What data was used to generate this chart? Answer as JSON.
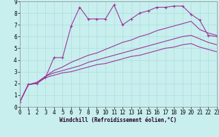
{
  "xlabel": "Windchill (Refroidissement éolien,°C)",
  "background_color": "#c8eeee",
  "line_color": "#993399",
  "grid_color": "#aadddd",
  "xlim": [
    0,
    23
  ],
  "ylim": [
    0,
    9
  ],
  "xticks": [
    0,
    1,
    2,
    3,
    4,
    5,
    6,
    7,
    8,
    9,
    10,
    11,
    12,
    13,
    14,
    15,
    16,
    17,
    18,
    19,
    20,
    21,
    22,
    23
  ],
  "yticks": [
    0,
    1,
    2,
    3,
    4,
    5,
    6,
    7,
    8,
    9
  ],
  "curve1_x": [
    0,
    1,
    2,
    3,
    4,
    5,
    6,
    7,
    8,
    9,
    10,
    11,
    12,
    13,
    14,
    15,
    16,
    17,
    18,
    19,
    20,
    21,
    22,
    23
  ],
  "curve1_y": [
    0.4,
    1.9,
    2.0,
    2.5,
    4.2,
    4.2,
    6.9,
    8.5,
    7.5,
    7.5,
    7.5,
    8.7,
    7.0,
    7.5,
    8.0,
    8.2,
    8.5,
    8.5,
    8.6,
    8.6,
    7.9,
    7.4,
    6.1,
    6.0
  ],
  "curve2_x": [
    0,
    1,
    2,
    3,
    4,
    5,
    6,
    7,
    8,
    9,
    10,
    11,
    12,
    13,
    14,
    15,
    16,
    17,
    18,
    19,
    20,
    21,
    22,
    23
  ],
  "curve2_y": [
    0.4,
    1.9,
    2.1,
    2.6,
    3.1,
    3.4,
    3.8,
    4.1,
    4.4,
    4.6,
    4.9,
    5.2,
    5.5,
    5.7,
    6.0,
    6.2,
    6.5,
    6.7,
    6.9,
    7.1,
    7.3,
    6.6,
    6.3,
    6.1
  ],
  "curve3_x": [
    0,
    1,
    2,
    3,
    4,
    5,
    6,
    7,
    8,
    9,
    10,
    11,
    12,
    13,
    14,
    15,
    16,
    17,
    18,
    19,
    20,
    21,
    22,
    23
  ],
  "curve3_y": [
    0.4,
    1.9,
    2.0,
    2.6,
    2.9,
    3.1,
    3.3,
    3.5,
    3.8,
    4.0,
    4.2,
    4.4,
    4.6,
    4.8,
    5.0,
    5.2,
    5.4,
    5.6,
    5.8,
    6.0,
    6.1,
    5.8,
    5.5,
    5.3
  ],
  "curve4_x": [
    0,
    1,
    2,
    3,
    4,
    5,
    6,
    7,
    8,
    9,
    10,
    11,
    12,
    13,
    14,
    15,
    16,
    17,
    18,
    19,
    20,
    21,
    22,
    23
  ],
  "curve4_y": [
    0.4,
    1.9,
    2.0,
    2.5,
    2.7,
    2.9,
    3.0,
    3.2,
    3.4,
    3.6,
    3.7,
    3.9,
    4.1,
    4.3,
    4.4,
    4.6,
    4.8,
    5.0,
    5.1,
    5.3,
    5.4,
    5.1,
    4.9,
    4.7
  ],
  "xlabel_fontsize": 5.5,
  "tick_fontsize": 5.5,
  "xlabel_fontfamily": "monospace"
}
